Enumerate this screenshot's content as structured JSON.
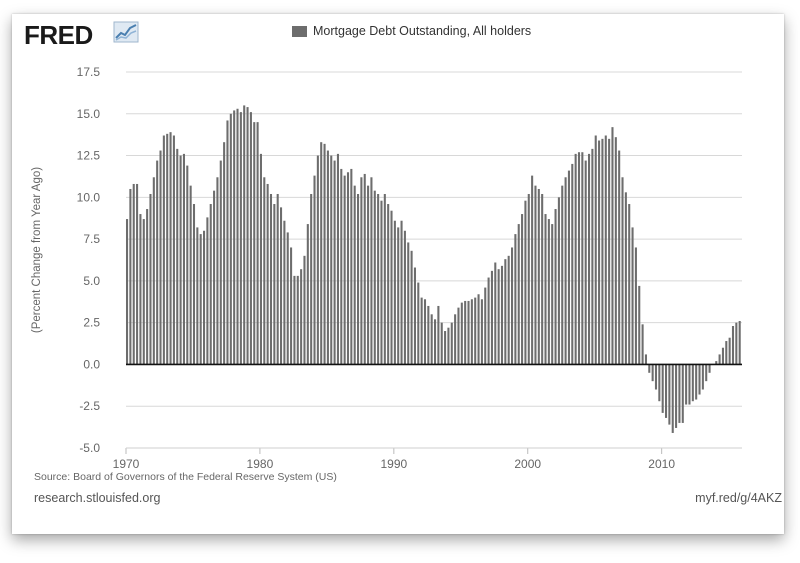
{
  "logo": {
    "text": "FRED",
    "icon": "chart-line-icon"
  },
  "chart_data": {
    "type": "bar",
    "title": "",
    "legend": [
      {
        "name": "Mortgage Debt Outstanding, All holders",
        "color": "#6d6d6d"
      }
    ],
    "legend_placement": "top-center",
    "ylabel": "(Percent Change from Year Ago)",
    "xlabel": "",
    "ylim": [
      -5.0,
      17.5
    ],
    "yticks": [
      "-5.0",
      "-2.5",
      "0.0",
      "2.5",
      "5.0",
      "7.5",
      "10.0",
      "12.5",
      "15.0",
      "17.5"
    ],
    "xlim": [
      1970,
      2016
    ],
    "xticks": [
      "1970",
      "1980",
      "1990",
      "2000",
      "2010"
    ],
    "grid": true,
    "bar_color": "#6d6d6d",
    "series": [
      {
        "name": "Mortgage Debt Outstanding, All holders",
        "frequency": "quarterly",
        "start": "1970 Q1",
        "values": [
          8.7,
          10.5,
          10.8,
          10.8,
          9.0,
          8.7,
          9.3,
          10.2,
          11.2,
          12.2,
          12.8,
          13.7,
          13.8,
          13.9,
          13.7,
          12.9,
          12.5,
          12.6,
          11.9,
          10.7,
          9.6,
          8.2,
          7.8,
          8.0,
          8.8,
          9.6,
          10.4,
          11.2,
          12.2,
          13.3,
          14.6,
          15.0,
          15.2,
          15.3,
          15.1,
          15.5,
          15.4,
          15.1,
          14.5,
          14.5,
          12.6,
          11.2,
          10.8,
          10.2,
          9.6,
          10.2,
          9.4,
          8.6,
          7.9,
          7.0,
          5.3,
          5.3,
          5.7,
          6.5,
          8.4,
          10.2,
          11.3,
          12.5,
          13.3,
          13.2,
          12.8,
          12.5,
          12.2,
          12.6,
          11.7,
          11.3,
          11.5,
          11.7,
          10.7,
          10.2,
          11.2,
          11.4,
          10.7,
          11.2,
          10.4,
          10.2,
          9.8,
          10.2,
          9.6,
          9.2,
          8.6,
          8.2,
          8.6,
          8.0,
          7.3,
          6.8,
          5.8,
          4.9,
          4.0,
          3.9,
          3.5,
          3.0,
          2.7,
          3.5,
          2.5,
          2.0,
          2.2,
          2.5,
          3.0,
          3.4,
          3.7,
          3.8,
          3.8,
          3.9,
          4.0,
          4.2,
          3.9,
          4.6,
          5.2,
          5.6,
          6.1,
          5.7,
          5.9,
          6.3,
          6.5,
          7.0,
          7.8,
          8.4,
          9.0,
          9.8,
          10.2,
          11.3,
          10.7,
          10.5,
          10.2,
          9.0,
          8.7,
          8.4,
          9.3,
          10.0,
          10.7,
          11.2,
          11.6,
          12.0,
          12.6,
          12.7,
          12.7,
          12.2,
          12.6,
          12.9,
          13.7,
          13.4,
          13.5,
          13.7,
          13.5,
          14.2,
          13.6,
          12.8,
          11.2,
          10.3,
          9.6,
          8.2,
          7.0,
          4.7,
          2.4,
          0.6,
          -0.5,
          -1.0,
          -1.5,
          -2.2,
          -2.9,
          -3.2,
          -3.6,
          -4.1,
          -3.8,
          -3.5,
          -3.5,
          -2.4,
          -2.4,
          -2.2,
          -2.1,
          -1.8,
          -1.5,
          -1.0,
          -0.5,
          0.0,
          0.2,
          0.6,
          1.0,
          1.4,
          1.6,
          2.3,
          2.5,
          2.6
        ]
      }
    ]
  },
  "source": "Source: Board of Governors of the Federal Reserve System (US)",
  "footer": {
    "left": "research.stlouisfed.org",
    "right": "myf.red/g/4AKZ"
  }
}
